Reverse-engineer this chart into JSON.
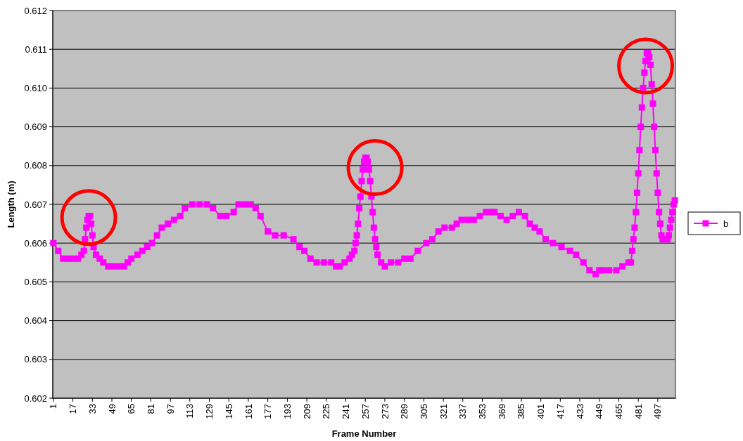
{
  "chart_data": {
    "type": "line",
    "xlabel": "Frame Number",
    "ylabel": "Length (m)",
    "xlim": [
      0.5,
      511.5
    ],
    "xticks": [
      1,
      17,
      33,
      49,
      65,
      81,
      97,
      113,
      129,
      145,
      161,
      177,
      193,
      209,
      225,
      241,
      257,
      273,
      289,
      305,
      321,
      337,
      353,
      369,
      385,
      401,
      417,
      433,
      449,
      465,
      481,
      497
    ],
    "ylim": [
      0.602,
      0.612
    ],
    "yticks": [
      0.602,
      0.603,
      0.604,
      0.605,
      0.606,
      0.607,
      0.608,
      0.609,
      {
        "value": 0.61,
        "label": "0.610"
      },
      0.611,
      0.612
    ],
    "grid": "y",
    "legend": "right",
    "marker": "square",
    "line_style": "solid",
    "series": [
      {
        "name": "b",
        "color": "#ff00ff",
        "x": [
          1,
          5,
          9,
          13,
          17,
          21,
          24,
          26,
          27,
          28,
          29,
          30,
          31,
          32,
          33,
          34,
          36,
          39,
          42,
          46,
          50,
          55,
          59,
          62,
          65,
          70,
          74,
          78,
          82,
          86,
          90,
          95,
          100,
          105,
          109,
          115,
          121,
          127,
          132,
          138,
          143,
          149,
          153,
          158,
          163,
          167,
          171,
          177,
          183,
          190,
          198,
          203,
          207,
          212,
          217,
          223,
          229,
          233,
          236,
          240,
          244,
          246,
          248,
          249,
          250,
          251,
          252,
          253,
          254,
          255,
          256,
          257,
          258,
          259,
          260,
          261,
          262,
          263,
          264,
          265,
          266,
          267,
          270,
          273,
          278,
          284,
          289,
          294,
          300,
          307,
          312,
          317,
          322,
          328,
          332,
          336,
          341,
          346,
          351,
          356,
          360,
          363,
          368,
          373,
          378,
          383,
          388,
          392,
          396,
          400,
          405,
          411,
          418,
          425,
          430,
          436,
          441,
          446,
          449,
          452,
          457,
          463,
          468,
          473,
          475,
          476,
          477,
          478,
          479,
          480,
          481,
          482,
          483,
          484,
          485,
          486,
          487,
          488,
          489,
          490,
          491,
          492,
          493,
          494,
          495,
          496,
          497,
          498,
          499,
          500,
          501,
          502,
          503,
          504,
          505,
          506,
          507,
          508,
          509,
          510,
          511
        ],
        "values": [
          0.606,
          0.6058,
          0.6056,
          0.6056,
          0.6056,
          0.6056,
          0.6057,
          0.6058,
          0.6061,
          0.6064,
          0.6066,
          0.6067,
          0.6067,
          0.6065,
          0.6062,
          0.6059,
          0.6057,
          0.6056,
          0.6055,
          0.6054,
          0.6054,
          0.6054,
          0.6054,
          0.6055,
          0.6056,
          0.6057,
          0.6058,
          0.6059,
          0.606,
          0.6062,
          0.6064,
          0.6065,
          0.6066,
          0.6067,
          0.6069,
          0.607,
          0.607,
          0.607,
          0.6069,
          0.6067,
          0.6067,
          0.6068,
          0.607,
          0.607,
          0.607,
          0.6069,
          0.6067,
          0.6063,
          0.6062,
          0.6062,
          0.6061,
          0.6059,
          0.6058,
          0.6056,
          0.6055,
          0.6055,
          0.6055,
          0.6054,
          0.6054,
          0.6055,
          0.6056,
          0.6057,
          0.6058,
          0.606,
          0.6062,
          0.6065,
          0.6069,
          0.6072,
          0.6076,
          0.6079,
          0.6081,
          0.6082,
          0.6082,
          0.6081,
          0.6079,
          0.6076,
          0.6072,
          0.6068,
          0.6064,
          0.6061,
          0.6059,
          0.6057,
          0.6055,
          0.6054,
          0.6055,
          0.6055,
          0.6056,
          0.6056,
          0.6058,
          0.606,
          0.6061,
          0.6063,
          0.6064,
          0.6064,
          0.6065,
          0.6066,
          0.6066,
          0.6066,
          0.6067,
          0.6068,
          0.6068,
          0.6068,
          0.6067,
          0.6066,
          0.6067,
          0.6068,
          0.6067,
          0.6065,
          0.6064,
          0.6063,
          0.6061,
          0.606,
          0.6059,
          0.6058,
          0.6057,
          0.6055,
          0.6053,
          0.6052,
          0.6053,
          0.6053,
          0.6053,
          0.6053,
          0.6054,
          0.6055,
          0.6055,
          0.6058,
          0.6061,
          0.6064,
          0.6068,
          0.6073,
          0.6078,
          0.6084,
          0.609,
          0.6095,
          0.61,
          0.6104,
          0.6107,
          0.6109,
          0.6109,
          0.6108,
          0.6106,
          0.6101,
          0.6096,
          0.609,
          0.6084,
          0.6078,
          0.6073,
          0.6068,
          0.6065,
          0.6062,
          0.6061,
          0.6061,
          0.6061,
          0.6061,
          0.6061,
          0.6062,
          0.6064,
          0.6066,
          0.6068,
          0.607,
          0.6071
        ]
      }
    ]
  }
}
